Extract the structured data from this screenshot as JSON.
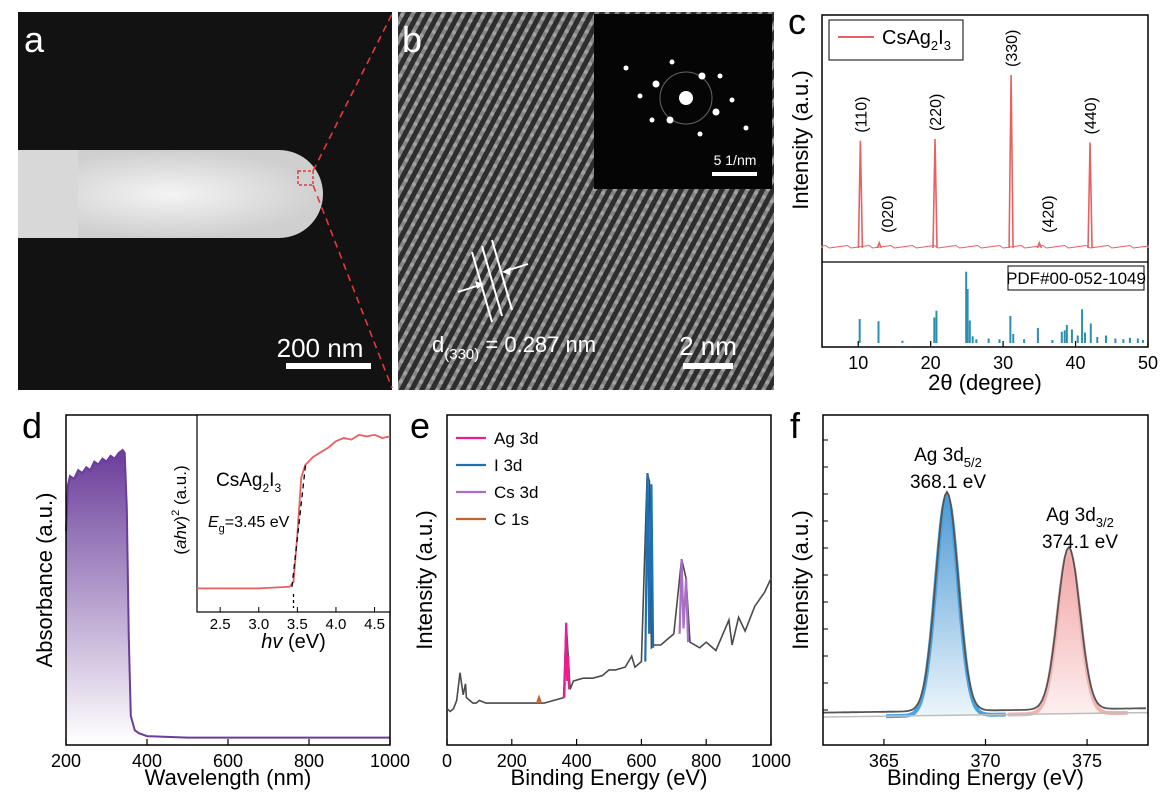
{
  "panels": {
    "a": {
      "letter": "a",
      "scale_label": "200 nm"
    },
    "b": {
      "letter": "b",
      "scale_label": "2 nm",
      "inset_scale_label": "5 1/nm",
      "d_label_main": "d",
      "d_label_sub": "(330)",
      "d_label_rest": " = 0.287 nm"
    },
    "c": {
      "letter": "c"
    },
    "d": {
      "letter": "d"
    },
    "e": {
      "letter": "e"
    },
    "f": {
      "letter": "f"
    }
  },
  "chart_data": [
    {
      "panel": "c",
      "type": "line",
      "xlabel": "2θ (degree)",
      "ylabel": "Intensity (a.u.)",
      "xlim": [
        5,
        50
      ],
      "xticks": [
        10,
        20,
        30,
        40,
        50
      ],
      "legend": {
        "label_main": "CsAg",
        "label_sub1": "2",
        "label_mid": "I",
        "label_sub2": "3",
        "position": "top-left",
        "color": "#e8605f"
      },
      "reference_label": "PDF#00-052-1049",
      "series": [
        {
          "name": "CsAg2I3",
          "color": "#e8605f",
          "peaks": [
            {
              "x": 10.3,
              "y": 0.62,
              "label": "(110)"
            },
            {
              "x": 12.9,
              "y": 0.03,
              "label": "(020)"
            },
            {
              "x": 20.6,
              "y": 0.63,
              "label": "(220)"
            },
            {
              "x": 31.1,
              "y": 1.0,
              "label": "(330)"
            },
            {
              "x": 35.0,
              "y": 0.03,
              "label": "(420)"
            },
            {
              "x": 42.0,
              "y": 0.61,
              "label": "(440)"
            }
          ]
        }
      ],
      "reference_sticks": {
        "color": "#2a8fb0",
        "x": [
          10.2,
          12.8,
          16.1,
          20.5,
          20.8,
          24.9,
          25.1,
          25.4,
          25.8,
          26.3,
          28.0,
          29.5,
          31.0,
          31.4,
          32.9,
          34.8,
          36.8,
          38.1,
          38.5,
          38.8,
          39.5,
          40.3,
          40.9,
          41.3,
          42.1,
          43.0,
          44.2,
          45.5,
          46.6,
          47.5,
          48.6,
          49.3
        ],
        "y": [
          0.32,
          0.29,
          0.03,
          0.34,
          0.43,
          0.95,
          0.72,
          0.3,
          0.09,
          0.05,
          0.06,
          0.05,
          0.36,
          0.12,
          0.05,
          0.2,
          0.04,
          0.15,
          0.17,
          0.24,
          0.18,
          0.1,
          0.45,
          0.14,
          0.26,
          0.08,
          0.1,
          0.06,
          0.05,
          0.07,
          0.06,
          0.04
        ]
      }
    },
    {
      "panel": "d",
      "type": "area",
      "xlabel": "Wavelength (nm)",
      "ylabel": "Absorbance (a.u.)",
      "xlim": [
        200,
        1000
      ],
      "xticks": [
        200,
        400,
        600,
        800,
        1000
      ],
      "color": "#6a3d9a",
      "x": [
        200,
        205,
        210,
        220,
        230,
        240,
        250,
        260,
        270,
        280,
        290,
        300,
        310,
        320,
        330,
        340,
        345,
        350,
        355,
        360,
        370,
        380,
        400,
        500,
        600,
        700,
        800,
        900,
        1000
      ],
      "y": [
        0.72,
        0.88,
        0.91,
        0.9,
        0.93,
        0.92,
        0.94,
        0.93,
        0.96,
        0.95,
        0.97,
        0.96,
        0.98,
        0.97,
        0.99,
        1.0,
        0.99,
        0.8,
        0.35,
        0.08,
        0.03,
        0.02,
        0.01,
        0.005,
        0.005,
        0.005,
        0.005,
        0.005,
        0.005
      ],
      "inset": {
        "xlabel_italic": "hv",
        "xlabel_rest": " (eV)",
        "ylabel_open": "(",
        "ylabel_italic": "ahv",
        "ylabel_close": ")",
        "ylabel_sup": "2",
        "ylabel_rest": " (a.u.)",
        "xlim": [
          2.2,
          4.7
        ],
        "xticks": [
          "2.5",
          "3.0",
          "3.5",
          "4.0",
          "4.5"
        ],
        "compound_main": "CsAg",
        "compound_sub1": "2",
        "compound_mid": "I",
        "compound_sub2": "3",
        "eg_italic": "E",
        "eg_sub": "g",
        "eg_rest": "=3.45 eV",
        "color": "#e8605f",
        "x": [
          2.2,
          3.0,
          3.4,
          3.45,
          3.5,
          3.55,
          3.6,
          3.7,
          3.8,
          3.9,
          4.0,
          4.1,
          4.2,
          4.3,
          4.4,
          4.5,
          4.6,
          4.7
        ],
        "y": [
          0.01,
          0.01,
          0.02,
          0.05,
          0.35,
          0.7,
          0.78,
          0.83,
          0.86,
          0.89,
          0.93,
          0.95,
          0.94,
          0.97,
          0.96,
          0.97,
          0.95,
          0.96
        ]
      }
    },
    {
      "panel": "e",
      "type": "line",
      "xlabel": "Binding Energy (eV)",
      "ylabel": "Intensity (a.u.)",
      "xlim": [
        0,
        1000
      ],
      "xticks": [
        0,
        200,
        400,
        600,
        800,
        1000
      ],
      "legend": [
        {
          "name": "Ag 3d",
          "color": "#e91e8c"
        },
        {
          "name": "I 3d",
          "color": "#1f6fb2"
        },
        {
          "name": "Cs 3d",
          "color": "#a96fc7"
        },
        {
          "name": "C 1s",
          "color": "#c0642b"
        }
      ],
      "survey": {
        "color": "#4a4a4a",
        "x": [
          0,
          10,
          20,
          30,
          40,
          50,
          57,
          60,
          70,
          80,
          90,
          100,
          120,
          150,
          180,
          200,
          220,
          250,
          280,
          300,
          330,
          360,
          368,
          374,
          380,
          390,
          420,
          450,
          480,
          500,
          520,
          550,
          570,
          580,
          600,
          618,
          625,
          631,
          640,
          660,
          680,
          700,
          724,
          738,
          750,
          780,
          800,
          830,
          870,
          880,
          900,
          920,
          950,
          980,
          1000
        ],
        "y": [
          0.03,
          0.02,
          0.03,
          0.06,
          0.16,
          0.08,
          0.12,
          0.07,
          0.06,
          0.05,
          0.05,
          0.06,
          0.05,
          0.05,
          0.05,
          0.05,
          0.05,
          0.05,
          0.05,
          0.05,
          0.06,
          0.07,
          0.34,
          0.22,
          0.1,
          0.13,
          0.14,
          0.14,
          0.15,
          0.17,
          0.17,
          0.18,
          0.22,
          0.18,
          0.2,
          0.88,
          0.85,
          0.25,
          0.26,
          0.26,
          0.28,
          0.3,
          0.57,
          0.5,
          0.27,
          0.25,
          0.27,
          0.24,
          0.35,
          0.26,
          0.36,
          0.31,
          0.4,
          0.45,
          0.5
        ]
      },
      "highlights": [
        {
          "name": "C 1s",
          "x": [
            278,
            284,
            290
          ],
          "y": [
            0.05,
            0.07,
            0.05
          ]
        },
        {
          "name": "Ag 3d",
          "x": [
            362,
            368,
            371,
            374,
            377
          ],
          "y": [
            0.07,
            0.34,
            0.13,
            0.22,
            0.1
          ]
        },
        {
          "name": "I 3d",
          "x": [
            612,
            619,
            624,
            631,
            636
          ],
          "y": [
            0.2,
            0.88,
            0.3,
            0.84,
            0.25
          ]
        },
        {
          "name": "Cs 3d",
          "x": [
            718,
            724,
            730,
            738,
            744
          ],
          "y": [
            0.3,
            0.57,
            0.32,
            0.5,
            0.27
          ]
        }
      ]
    },
    {
      "panel": "f",
      "type": "line",
      "xlabel": "Binding Energy (eV)",
      "ylabel": "Intensity (a.u.)",
      "xlim": [
        362,
        378
      ],
      "xticks": [
        365,
        370,
        375
      ],
      "annotations": [
        {
          "main": "Ag 3d",
          "sub": "5/2",
          "value": "368.1 eV"
        },
        {
          "main": "Ag 3d",
          "sub": "3/2",
          "value": "374.1 eV"
        }
      ],
      "peaks": [
        {
          "center": 368.1,
          "height": 1.0,
          "width": 0.55,
          "fill": "#3b8fd0",
          "line": "#4aa3e0"
        },
        {
          "center": 374.1,
          "height": 0.74,
          "width": 0.55,
          "fill": "#f0a0a0",
          "line": "#f2b3b0"
        }
      ],
      "background": {
        "x": [
          362,
          378
        ],
        "y": [
          0.0,
          0.02
        ]
      },
      "raw_color": "#555555"
    }
  ]
}
